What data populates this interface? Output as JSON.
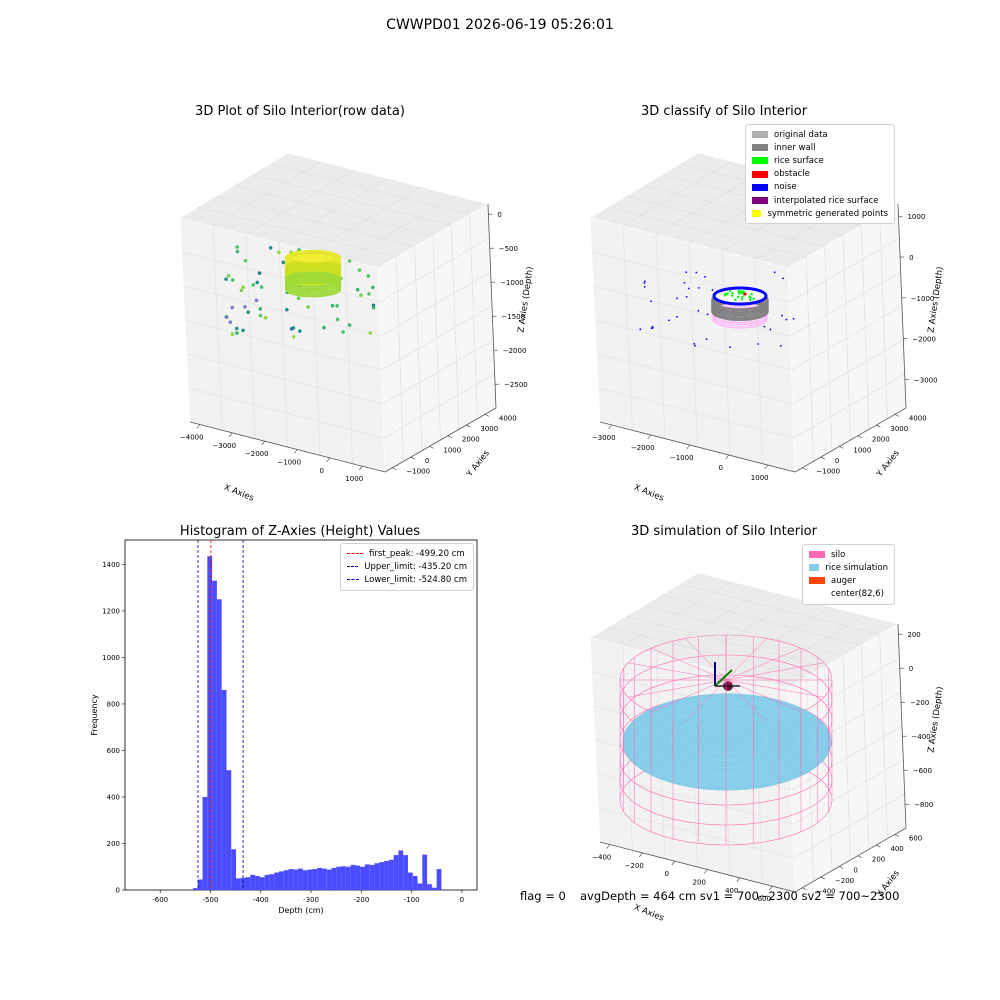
{
  "suptitle": "CWWPD01 2026-06-19 05:26:01",
  "footer": {
    "flag": "flag = 0",
    "avg": "avgDepth = 464 cm  sv1 = 700~2300  sv2 = 700~2300"
  },
  "chart_data": [
    {
      "type": "scatter",
      "title": "3D Plot of Silo Interior(row data)",
      "xlabel": "X Axies",
      "ylabel": "Y Axies",
      "zlabel": "Z Axies (Depth)",
      "x_ticks": [
        "−4000",
        "−3000",
        "−2000",
        "−1000",
        "0",
        "1000"
      ],
      "y_ticks": [
        "−1000",
        "0",
        "1000",
        "2000",
        "3000",
        "4000"
      ],
      "z_ticks": [
        "0",
        "−500",
        "−1000",
        "−1500",
        "−2000",
        "−2500"
      ],
      "colormap": "viridis"
    },
    {
      "type": "scatter",
      "title": "3D classify of Silo Interior",
      "xlabel": "X Axies",
      "ylabel": "Y Axies",
      "zlabel": "Z Axies (Depth)",
      "x_ticks": [
        "−3000",
        "−2000",
        "−1000",
        "0",
        "1000"
      ],
      "y_ticks": [
        "−1000",
        "0",
        "1000",
        "2000",
        "3000",
        "4000"
      ],
      "z_ticks": [
        "1000",
        "0",
        "−1000",
        "−2000",
        "−3000"
      ],
      "legend": [
        {
          "label": "original data",
          "color": "#b0b0b0"
        },
        {
          "label": "inner wall",
          "color": "#808080"
        },
        {
          "label": "rice surface",
          "color": "#00ff00"
        },
        {
          "label": "obstacle",
          "color": "#ff0000"
        },
        {
          "label": "noise",
          "color": "#0000ff"
        },
        {
          "label": "interpolated rice surface",
          "color": "#800080"
        },
        {
          "label": "symmetric generated points",
          "color": "#ffff00"
        }
      ]
    },
    {
      "type": "bar",
      "title": "Histogram of Z-Axies (Height) Values",
      "xlabel": "Depth (cm)",
      "ylabel": "Frequency",
      "xlim": [
        -670,
        30
      ],
      "ylim": [
        0,
        1505
      ],
      "x_ticks": [
        -600,
        -500,
        -400,
        -300,
        -200,
        -100,
        0
      ],
      "y_ticks": [
        0,
        200,
        400,
        600,
        800,
        1000,
        1200,
        1400
      ],
      "bin_width": 9.5,
      "bins": [
        {
          "x": -530,
          "y": 8
        },
        {
          "x": -520.5,
          "y": 45
        },
        {
          "x": -511,
          "y": 400
        },
        {
          "x": -501.5,
          "y": 1435
        },
        {
          "x": -492,
          "y": 1330
        },
        {
          "x": -482.5,
          "y": 1250
        },
        {
          "x": -473,
          "y": 860
        },
        {
          "x": -463.5,
          "y": 515
        },
        {
          "x": -454,
          "y": 175
        },
        {
          "x": -444.5,
          "y": 50
        },
        {
          "x": -435,
          "y": 52
        },
        {
          "x": -425.5,
          "y": 55
        },
        {
          "x": -416,
          "y": 65
        },
        {
          "x": -406.5,
          "y": 60
        },
        {
          "x": -397,
          "y": 55
        },
        {
          "x": -387.5,
          "y": 65
        },
        {
          "x": -378,
          "y": 68
        },
        {
          "x": -368.5,
          "y": 75
        },
        {
          "x": -359,
          "y": 80
        },
        {
          "x": -349.5,
          "y": 85
        },
        {
          "x": -340,
          "y": 90
        },
        {
          "x": -330.5,
          "y": 88
        },
        {
          "x": -321,
          "y": 92
        },
        {
          "x": -311.5,
          "y": 85
        },
        {
          "x": -302,
          "y": 88
        },
        {
          "x": -292.5,
          "y": 90
        },
        {
          "x": -283,
          "y": 95
        },
        {
          "x": -273.5,
          "y": 92
        },
        {
          "x": -264,
          "y": 88
        },
        {
          "x": -254.5,
          "y": 95
        },
        {
          "x": -245,
          "y": 100
        },
        {
          "x": -235.5,
          "y": 102
        },
        {
          "x": -226,
          "y": 100
        },
        {
          "x": -216.5,
          "y": 108
        },
        {
          "x": -207,
          "y": 105
        },
        {
          "x": -197.5,
          "y": 100
        },
        {
          "x": -188,
          "y": 110
        },
        {
          "x": -178.5,
          "y": 108
        },
        {
          "x": -169,
          "y": 115
        },
        {
          "x": -159.5,
          "y": 120
        },
        {
          "x": -150,
          "y": 125
        },
        {
          "x": -140.5,
          "y": 130
        },
        {
          "x": -131,
          "y": 150
        },
        {
          "x": -121.5,
          "y": 170
        },
        {
          "x": -112,
          "y": 150
        },
        {
          "x": -102.5,
          "y": 75
        },
        {
          "x": -93,
          "y": 60
        },
        {
          "x": -83.5,
          "y": 28
        },
        {
          "x": -74,
          "y": 152
        },
        {
          "x": -64.5,
          "y": 25
        },
        {
          "x": -55,
          "y": 10
        },
        {
          "x": -45.5,
          "y": 90
        }
      ],
      "vlines": [
        {
          "x": -499.2,
          "label": "first_peak: -499.20 cm",
          "color": "#ff0000"
        },
        {
          "x": -435.2,
          "label": "Upper_limit: -435.20 cm",
          "color": "#0000aa"
        },
        {
          "x": -524.8,
          "label": "Lower_limit: -524.80 cm",
          "color": "#0000aa"
        }
      ]
    },
    {
      "type": "scatter",
      "title": "3D simulation of Silo Interior",
      "xlabel": "X Axies",
      "ylabel": "Y Axies",
      "zlabel": "Z Axies (Depth)",
      "x_ticks": [
        "−400",
        "−200",
        "0",
        "200",
        "400",
        "600"
      ],
      "y_ticks": [
        "−400",
        "−200",
        "0",
        "200",
        "400",
        "600"
      ],
      "z_ticks": [
        "200",
        "0",
        "−200",
        "−400",
        "−600",
        "−800"
      ],
      "legend": [
        {
          "label": "silo",
          "color": "#ff69b4"
        },
        {
          "label": "rice simulation",
          "color": "#87ceeb"
        },
        {
          "label": "auger",
          "color": "#ff4500"
        },
        {
          "label": "center(82,6)",
          "color": "#ffffff"
        }
      ]
    }
  ]
}
